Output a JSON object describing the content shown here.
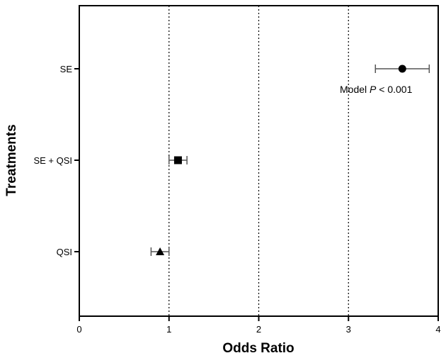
{
  "chart_data": {
    "type": "forest-plot",
    "xlabel": "Odds Ratio",
    "ylabel": "Treatments",
    "xlim": [
      0,
      4
    ],
    "x_ticks": [
      0,
      1,
      2,
      3,
      4
    ],
    "x_tick_labels": [
      "0",
      "1",
      "2",
      "3",
      "4"
    ],
    "reference_lines": [
      1,
      2,
      3
    ],
    "reference_line_style": "dotted",
    "series": [
      {
        "label": "SE",
        "odds_ratio": 3.6,
        "ci_low": 3.3,
        "ci_high": 3.9,
        "marker": "circle"
      },
      {
        "label": "SE + QSI",
        "odds_ratio": 1.1,
        "ci_low": 1.0,
        "ci_high": 1.2,
        "marker": "square"
      },
      {
        "label": "QSI",
        "odds_ratio": 0.9,
        "ci_low": 0.8,
        "ci_high": 1.0,
        "marker": "triangle"
      }
    ],
    "annotation": {
      "prefix": "Model ",
      "italic": "P",
      "suffix": " < 0.001"
    }
  }
}
